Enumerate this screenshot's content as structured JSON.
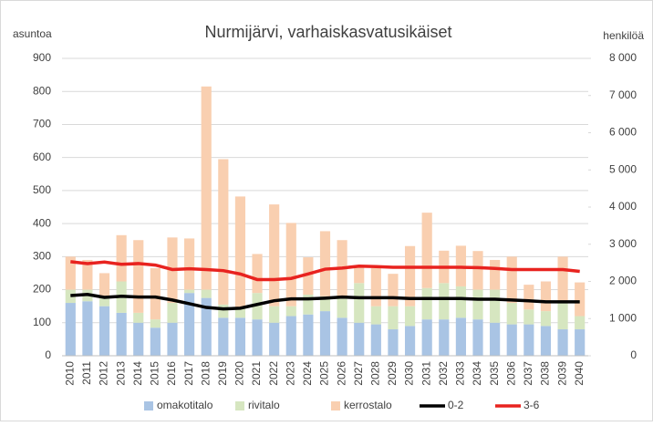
{
  "chart_data": {
    "type": "bar",
    "title": "Nurmijärvi, varhaiskasvatusikäiset",
    "ylabel": "asuntoa",
    "y2label": "henkilöä",
    "categories": [
      "2010",
      "2011",
      "2012",
      "2013",
      "2014",
      "2015",
      "2016",
      "2017",
      "2018",
      "2019",
      "2020",
      "2021",
      "2022",
      "2023",
      "2024",
      "2025",
      "2026",
      "2027",
      "2028",
      "2029",
      "2030",
      "2031",
      "2032",
      "2033",
      "2034",
      "2035",
      "2036",
      "2037",
      "2038",
      "2039",
      "2040"
    ],
    "ylim": [
      0,
      900
    ],
    "yticks": [
      0,
      100,
      200,
      300,
      400,
      500,
      600,
      700,
      800,
      900
    ],
    "y2lim": [
      0,
      8000
    ],
    "y2ticks": [
      0,
      {
        "value": 1000,
        "label": "1 000"
      },
      {
        "value": 2000,
        "label": "2 000"
      },
      {
        "value": 3000,
        "label": "3 000"
      },
      {
        "value": 4000,
        "label": "4 000"
      },
      {
        "value": 5000,
        "label": "5 000"
      },
      {
        "value": 6000,
        "label": "6 000"
      },
      {
        "value": 7000,
        "label": "7 000"
      },
      {
        "value": 8000,
        "label": "8 000"
      }
    ],
    "grid": true,
    "legend": "bottom",
    "series": [
      {
        "name": "omakotitalo",
        "color": "#a9c4e4",
        "stack": true,
        "values": [
          160,
          165,
          150,
          130,
          100,
          85,
          100,
          190,
          175,
          115,
          115,
          110,
          100,
          120,
          125,
          135,
          115,
          100,
          95,
          80,
          90,
          110,
          110,
          115,
          110,
          100,
          95,
          95,
          90,
          80,
          80
        ]
      },
      {
        "name": "rivitalo",
        "color": "#d6e6c0",
        "stack": true,
        "values": [
          40,
          35,
          30,
          95,
          30,
          25,
          60,
          10,
          25,
          40,
          30,
          80,
          50,
          30,
          60,
          45,
          60,
          120,
          55,
          70,
          60,
          95,
          110,
          95,
          90,
          100,
          65,
          45,
          45,
          80,
          40
        ]
      },
      {
        "name": "kerrostalo",
        "color": "#f9cfb0",
        "stack": true,
        "values": [
          100,
          90,
          70,
          140,
          220,
          155,
          198,
          155,
          615,
          440,
          337,
          118,
          308,
          252,
          113,
          197,
          175,
          50,
          115,
          98,
          182,
          228,
          98,
          123,
          117,
          90,
          140,
          75,
          90,
          140,
          102
        ]
      },
      {
        "name": "0-2",
        "color": "#000000",
        "type": "line",
        "axis": "y2",
        "values": [
          1620,
          1650,
          1570,
          1600,
          1580,
          1580,
          1500,
          1400,
          1300,
          1260,
          1280,
          1380,
          1480,
          1530,
          1530,
          1550,
          1580,
          1560,
          1560,
          1560,
          1540,
          1540,
          1540,
          1540,
          1520,
          1520,
          1500,
          1480,
          1450,
          1450,
          1450
        ]
      },
      {
        "name": "3-6",
        "color": "#e8231f",
        "type": "line",
        "axis": "y2",
        "values": [
          2530,
          2480,
          2520,
          2460,
          2480,
          2440,
          2320,
          2340,
          2320,
          2290,
          2200,
          2050,
          2050,
          2080,
          2200,
          2330,
          2360,
          2410,
          2400,
          2380,
          2380,
          2380,
          2380,
          2380,
          2370,
          2350,
          2320,
          2320,
          2320,
          2320,
          2270
        ]
      }
    ]
  }
}
